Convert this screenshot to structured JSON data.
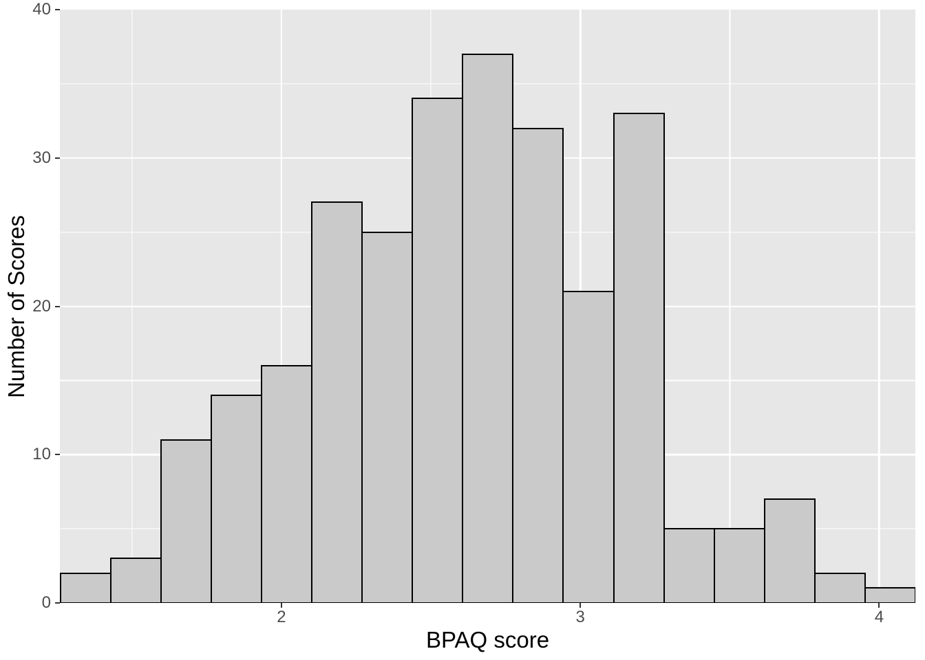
{
  "chart_data": {
    "type": "histogram",
    "title": "",
    "xlabel": "BPAQ score",
    "ylabel": "Number of Scores",
    "values": [
      2,
      3,
      11,
      14,
      16,
      27,
      25,
      34,
      37,
      32,
      21,
      33,
      5,
      5,
      7,
      2,
      1
    ],
    "bin_start": 1.26,
    "binwidth": 0.1683,
    "xlim": [
      1.2585,
      4.121
    ],
    "ylim": [
      0,
      40
    ],
    "x_ticks": [
      2,
      3,
      4
    ],
    "y_ticks": [
      0,
      10,
      20,
      30,
      40
    ],
    "x_major_gridlines": [
      2,
      3,
      4
    ],
    "x_minor_gridlines": [
      1.5,
      2.5,
      3.5
    ],
    "y_major_gridlines": [
      10,
      20,
      30
    ],
    "y_minor_gridlines": [
      5,
      15,
      25,
      35
    ],
    "grid": "on",
    "legend": "none",
    "colors": {
      "figure_bg": "#FFFFFF",
      "panel_bg": "#E7E7E7",
      "bar_fill": "#CACACA",
      "bar_border": "#000000",
      "gridline": "#FFFFFF",
      "tick_mark": "#333333",
      "tick_label": "#4D4D4D",
      "axis_title": "#000000"
    }
  }
}
